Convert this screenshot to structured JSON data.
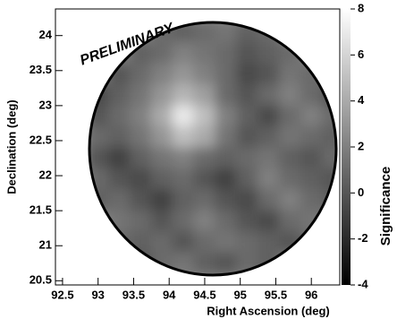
{
  "chart_data": {
    "type": "heatmap",
    "annotation": "PRELIMINARY",
    "x_label": "Right Ascension (deg)",
    "y_label": "Declination (deg)",
    "colorbar_label": "Significance",
    "xlim": [
      92.4,
      96.4
    ],
    "ylim": [
      20.44,
      24.38
    ],
    "xticks": [
      92.5,
      93,
      93.5,
      94,
      94.5,
      95,
      95.5,
      96
    ],
    "yticks": [
      20.5,
      21,
      21.5,
      22,
      22.5,
      23,
      23.5,
      24
    ],
    "colorbar_lim": [
      -4,
      8
    ],
    "colorbar_ticks": [
      -4,
      -2,
      0,
      2,
      4,
      6,
      8
    ],
    "x": [
      93.0,
      93.3,
      93.6,
      93.9,
      94.2,
      94.5,
      94.8,
      95.1,
      95.4,
      95.7,
      96.0,
      96.3
    ],
    "y": [
      24.05,
      23.75,
      23.45,
      23.15,
      22.85,
      22.55,
      22.25,
      21.95,
      21.65,
      21.35,
      21.05,
      20.75
    ],
    "values": [
      [
        null,
        null,
        null,
        1,
        0.5,
        1,
        1.5,
        0.5,
        1,
        null,
        null,
        null
      ],
      [
        null,
        null,
        0.5,
        1,
        2,
        1.5,
        1,
        0,
        0.5,
        1,
        null,
        null
      ],
      [
        null,
        0,
        1,
        2,
        3,
        2,
        1,
        -0.5,
        0,
        1.5,
        1,
        null
      ],
      [
        -0.5,
        0.5,
        1.5,
        3,
        4.5,
        3.5,
        1,
        0,
        1,
        2,
        1,
        0
      ],
      [
        0,
        1,
        2,
        4,
        7,
        5,
        2,
        0.5,
        -0.5,
        1,
        2,
        1
      ],
      [
        1,
        0.5,
        1.5,
        3,
        5,
        4,
        1.5,
        0,
        0.5,
        1.5,
        1,
        0.5
      ],
      [
        0,
        -1,
        0.5,
        1.5,
        2,
        1,
        0.5,
        1,
        1.5,
        0.5,
        0,
        1
      ],
      [
        1,
        0,
        -0.5,
        0.5,
        1,
        0,
        -1,
        0.5,
        2,
        1,
        0.5,
        0
      ],
      [
        0.5,
        1,
        0,
        -1,
        0.5,
        1,
        0,
        -0.5,
        1,
        2,
        1,
        0.5
      ],
      [
        null,
        1.5,
        1,
        0,
        1,
        2,
        1,
        0,
        -0.5,
        1,
        1.5,
        null
      ],
      [
        null,
        1,
        0.5,
        1,
        0,
        1,
        1.5,
        1,
        0.5,
        0,
        1,
        null
      ],
      [
        null,
        null,
        0,
        1,
        1.5,
        0.5,
        0,
        1,
        0.5,
        null,
        null,
        null
      ]
    ]
  }
}
